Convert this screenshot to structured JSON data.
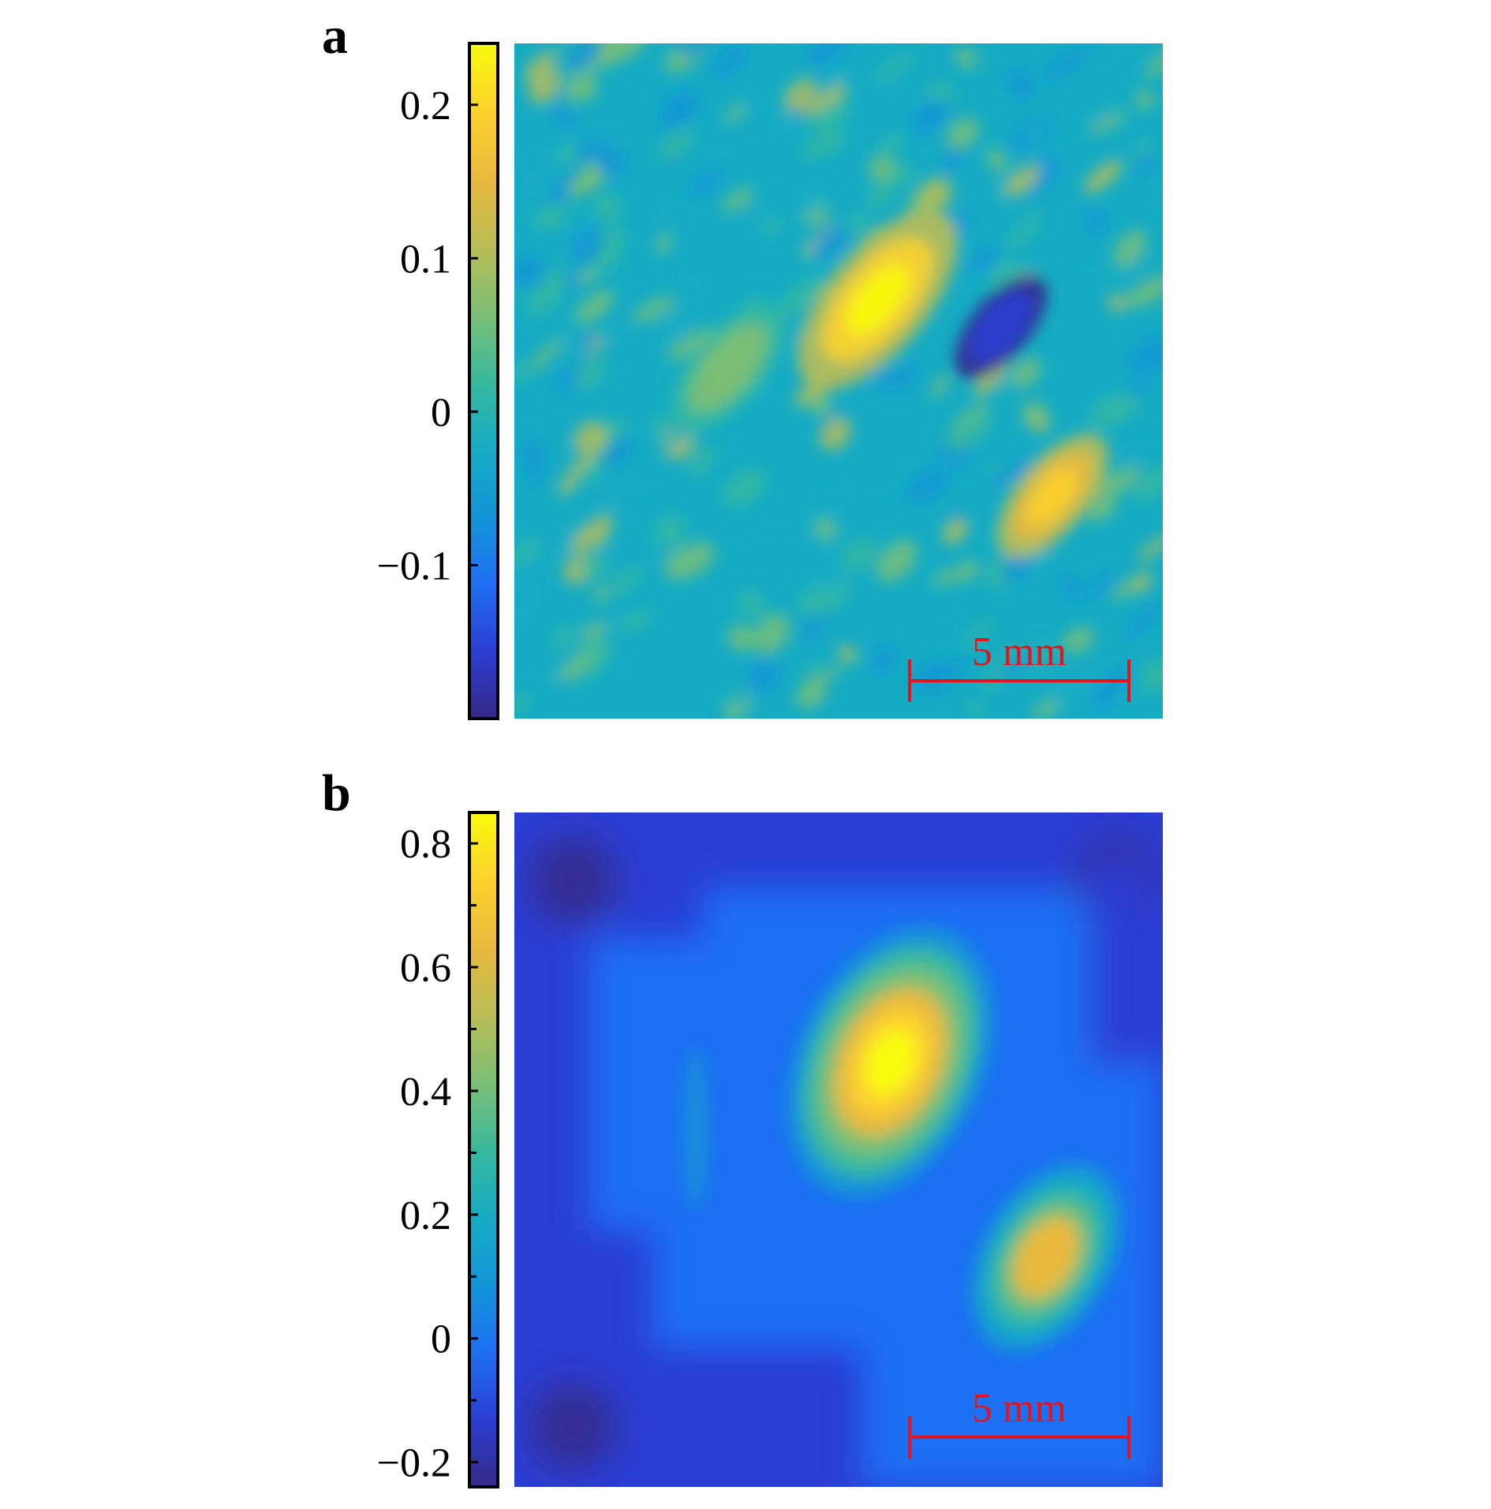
{
  "chart_data": [
    {
      "type": "heatmap",
      "panel_label": "a",
      "colormap": "parula",
      "colorbar": {
        "range": [
          -0.2,
          0.24
        ],
        "ticks": [
          -0.1,
          0,
          0.1,
          0.2
        ],
        "tick_labels": [
          "−0.1",
          "0",
          "0.1",
          "0.2"
        ]
      },
      "scale_bar_label": "5 mm",
      "background_value": -0.02,
      "features": [
        {
          "name": "bright-region",
          "value": 0.24,
          "cx": 0.56,
          "cy": 0.38
        },
        {
          "name": "second-bright-region",
          "value": 0.2,
          "cx": 0.83,
          "cy": 0.67
        },
        {
          "name": "dark-band",
          "value": -0.19,
          "cx": 0.75,
          "cy": 0.42
        },
        {
          "name": "mid-highlight",
          "value": 0.08,
          "cx": 0.33,
          "cy": 0.48
        }
      ],
      "title": "",
      "xlabel": "",
      "ylabel": ""
    },
    {
      "type": "heatmap",
      "panel_label": "b",
      "colormap": "parula",
      "colorbar": {
        "range": [
          -0.24,
          0.85
        ],
        "ticks": [
          -0.2,
          0,
          0.2,
          0.4,
          0.6,
          0.8
        ],
        "tick_labels": [
          "−0.2",
          "0",
          "0.2",
          "0.4",
          "0.6",
          "0.8"
        ],
        "minor_ticks": [
          -0.1,
          0.1,
          0.3,
          0.5,
          0.7
        ]
      },
      "scale_bar_label": "5 mm",
      "background_value": 0.02,
      "features": [
        {
          "name": "primary-peak",
          "value": 0.82,
          "cx": 0.58,
          "cy": 0.37
        },
        {
          "name": "secondary-peak",
          "value": 0.65,
          "cx": 0.82,
          "cy": 0.66
        },
        {
          "name": "corner-dark-top-left",
          "value": -0.22,
          "cx": 0.09,
          "cy": 0.1
        },
        {
          "name": "corner-dark-top-right",
          "value": -0.22,
          "cx": 0.93,
          "cy": 0.1
        },
        {
          "name": "corner-dark-bottom-left",
          "value": -0.22,
          "cx": 0.09,
          "cy": 0.91
        }
      ],
      "title": "",
      "xlabel": "",
      "ylabel": ""
    }
  ],
  "colors": {
    "parula": [
      "#352a87",
      "#2b3ed3",
      "#1f6ff3",
      "#1395d8",
      "#16acc4",
      "#38b99d",
      "#7cbf74",
      "#b9bd55",
      "#e9ba3e",
      "#fcd22d",
      "#f9fb0e"
    ],
    "scale_bar": "#e8121a"
  }
}
